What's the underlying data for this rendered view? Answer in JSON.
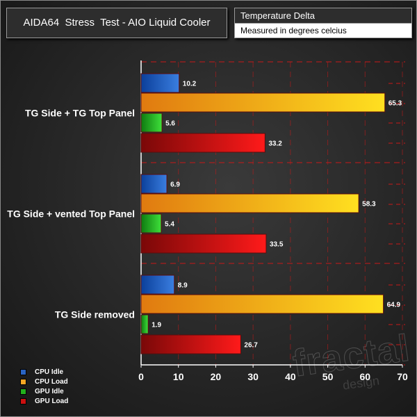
{
  "header": {
    "title": "AIDA64  Stress  Test - AIO Liquid Cooler",
    "info_title": "Temperature Delta",
    "info_subtitle": "Measured in degrees celcius"
  },
  "watermark": {
    "main": "fractal",
    "sub": "design"
  },
  "legend": [
    {
      "label": "CPU Idle",
      "color": "#2a64c4"
    },
    {
      "label": "CPU Load",
      "color": "#f5a623"
    },
    {
      "label": "GPU Idle",
      "color": "#22b01c"
    },
    {
      "label": "GPU Load",
      "color": "#cc1010"
    }
  ],
  "chart_data": {
    "type": "bar",
    "orientation": "horizontal",
    "title": "AIDA64  Stress  Test - AIO Liquid Cooler",
    "xlabel": "",
    "ylabel": "",
    "xlim": [
      0,
      70
    ],
    "ticks": [
      0,
      10,
      20,
      30,
      40,
      50,
      60,
      70
    ],
    "grid": true,
    "legend_position": "bottom-left",
    "categories": [
      "TG Side + TG Top Panel",
      "TG Side + vented Top Panel",
      "TG Side removed"
    ],
    "series": [
      {
        "name": "CPU Idle",
        "values": [
          10.2,
          6.9,
          8.9
        ],
        "colors": [
          "#0b3f9a",
          "#3a7ee0"
        ]
      },
      {
        "name": "CPU Load",
        "values": [
          65.3,
          58.3,
          64.9
        ],
        "colors": [
          "#e07a10",
          "#ffe020"
        ]
      },
      {
        "name": "GPU Idle",
        "values": [
          5.6,
          5.4,
          1.9
        ],
        "colors": [
          "#0e7a10",
          "#3ee03a"
        ]
      },
      {
        "name": "GPU Load",
        "values": [
          33.2,
          33.5,
          26.7
        ],
        "colors": [
          "#7a0808",
          "#ff1a1a"
        ]
      }
    ]
  }
}
